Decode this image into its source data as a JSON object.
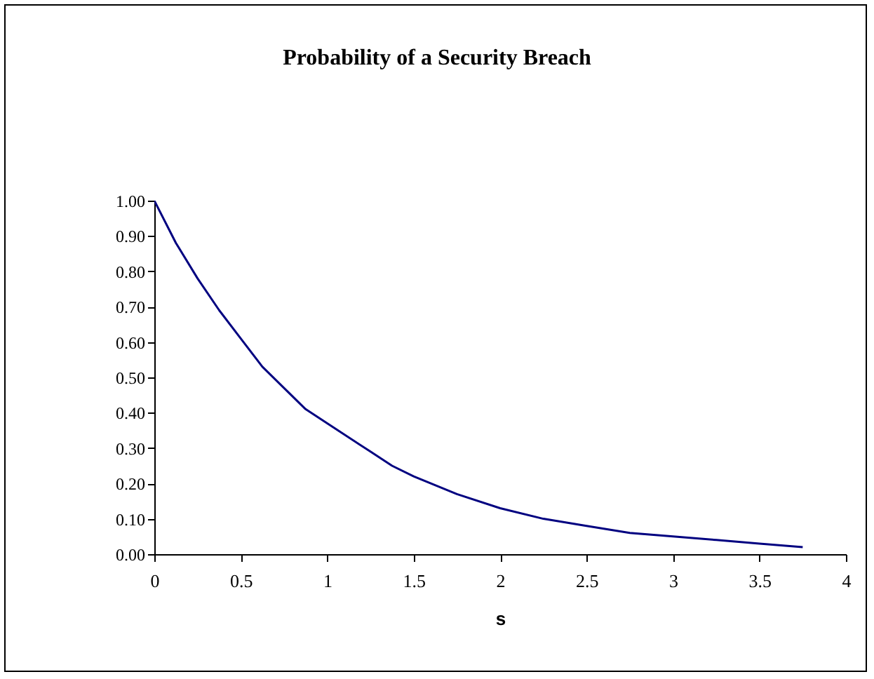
{
  "chart_data": {
    "type": "line",
    "title": "Probability of a Security Breach",
    "xlabel": "s",
    "x": [
      0,
      0.125,
      0.25,
      0.375,
      0.5,
      0.625,
      0.75,
      0.875,
      1,
      1.25,
      1.375,
      1.5,
      1.75,
      2,
      2.25,
      2.5,
      2.75,
      3,
      3.25,
      3.5,
      3.75
    ],
    "series": [
      {
        "color": "#000080",
        "values": [
          1.0,
          0.88,
          0.78,
          0.69,
          0.61,
          0.53,
          0.47,
          0.41,
          0.37,
          0.29,
          0.25,
          0.22,
          0.17,
          0.13,
          0.1,
          0.08,
          0.06,
          0.05,
          0.04,
          0.03,
          0.02
        ]
      }
    ],
    "xlim": [
      0,
      4
    ],
    "xticks": [
      0,
      0.5,
      1,
      1.5,
      2,
      2.5,
      3,
      3.5,
      4
    ],
    "ylim": [
      0,
      1
    ],
    "yticks": [
      {
        "value": 0,
        "label": "0.00"
      },
      {
        "value": 0.1,
        "label": "0.10"
      },
      {
        "value": 0.2,
        "label": "0.20"
      },
      {
        "value": 0.3,
        "label": "0.30"
      },
      {
        "value": 0.4,
        "label": "0.40"
      },
      {
        "value": 0.5,
        "label": "0.50"
      },
      {
        "value": 0.6,
        "label": "0.60"
      },
      {
        "value": 0.7,
        "label": "0.70"
      },
      {
        "value": 0.8,
        "label": "0.80"
      },
      {
        "value": 0.9,
        "label": "0.90"
      },
      {
        "value": 1,
        "label": "1.00"
      }
    ],
    "grid": false,
    "marker": "none",
    "line_style": "solid"
  }
}
